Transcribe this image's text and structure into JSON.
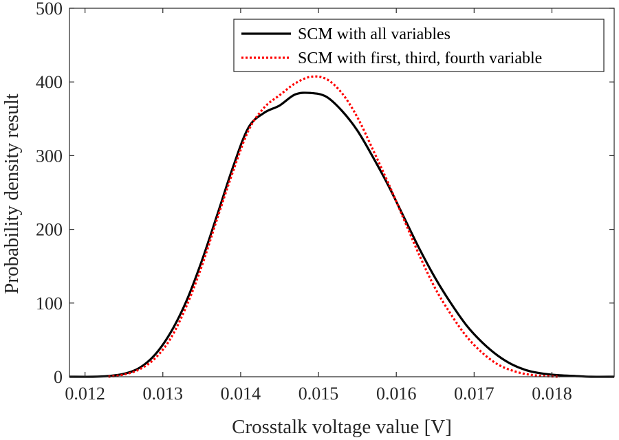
{
  "chart_data": {
    "type": "line",
    "title": "",
    "xlabel": "Crosstalk voltage value [V]",
    "ylabel": "Probability density result",
    "xlim": [
      0.0118,
      0.0188
    ],
    "ylim": [
      0,
      500
    ],
    "xticks": [
      0.012,
      0.013,
      0.014,
      0.015,
      0.016,
      0.017,
      0.018
    ],
    "xtick_labels": [
      "0.012",
      "0.013",
      "0.014",
      "0.015",
      "0.016",
      "0.017",
      "0.018"
    ],
    "yticks": [
      0,
      100,
      200,
      300,
      400,
      500
    ],
    "ytick_labels": [
      "0",
      "100",
      "200",
      "300",
      "400",
      "500"
    ],
    "grid": false,
    "legend_position": "top-right",
    "series": [
      {
        "name": "SCM with all variables",
        "color": "#000000",
        "style": "solid",
        "x": [
          0.0118,
          0.0121,
          0.0123,
          0.0125,
          0.0127,
          0.0129,
          0.0131,
          0.0133,
          0.0135,
          0.0137,
          0.0139,
          0.0141,
          0.0143,
          0.0145,
          0.0147,
          0.0149,
          0.0151,
          0.0153,
          0.0155,
          0.0157,
          0.0159,
          0.0161,
          0.0163,
          0.0165,
          0.0167,
          0.0169,
          0.0171,
          0.0173,
          0.0175,
          0.0177,
          0.0179,
          0.0181,
          0.0183,
          0.0185,
          0.0188
        ],
        "y": [
          0,
          0,
          1,
          4,
          12,
          30,
          60,
          102,
          157,
          220,
          284,
          338,
          358,
          368,
          383,
          385,
          380,
          361,
          334,
          298,
          259,
          216,
          173,
          134,
          100,
          70,
          47,
          29,
          16,
          8,
          4,
          2,
          1,
          0,
          0
        ]
      },
      {
        "name": "SCM with first, third, fourth variable",
        "color": "#ff0000",
        "style": "dotted",
        "x": [
          0.0123,
          0.0125,
          0.0127,
          0.0129,
          0.0131,
          0.0133,
          0.0135,
          0.0137,
          0.0139,
          0.0141,
          0.0143,
          0.0145,
          0.0147,
          0.0149,
          0.0151,
          0.0153,
          0.0155,
          0.0157,
          0.0159,
          0.0161,
          0.0163,
          0.0165,
          0.0167,
          0.0169,
          0.0171,
          0.0173,
          0.0175,
          0.0177,
          0.0179,
          0.0181
        ],
        "y": [
          0,
          3,
          10,
          25,
          52,
          95,
          150,
          215,
          278,
          334,
          365,
          382,
          398,
          407,
          404,
          385,
          352,
          308,
          262,
          213,
          164,
          120,
          85,
          55,
          33,
          17,
          8,
          3,
          1,
          0
        ]
      }
    ]
  }
}
